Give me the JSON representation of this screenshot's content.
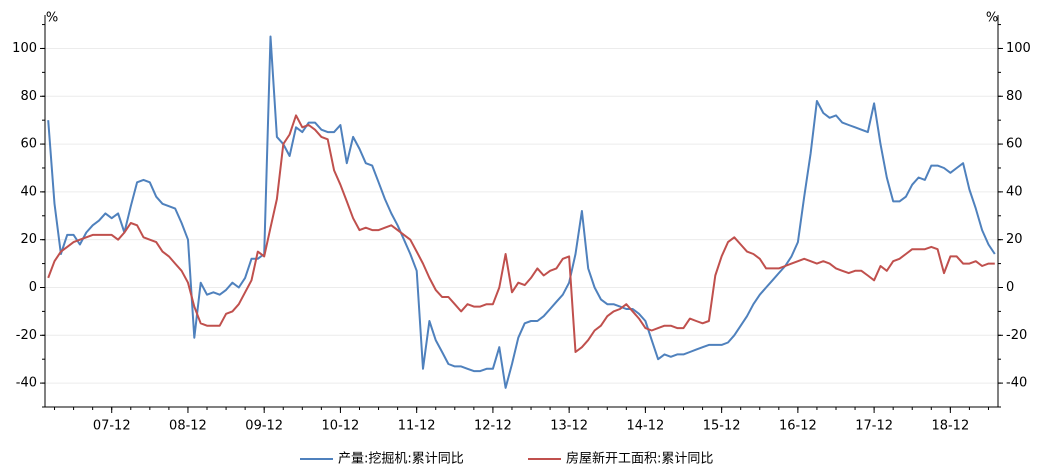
{
  "chart_data": {
    "type": "line",
    "y_unit": "%",
    "y2_unit": "%",
    "categories": [
      null,
      null,
      null,
      null,
      null,
      null,
      null,
      null,
      null,
      null,
      "07-12",
      null,
      null,
      null,
      null,
      null,
      null,
      null,
      null,
      null,
      null,
      null,
      "08-12",
      null,
      null,
      null,
      null,
      null,
      null,
      null,
      null,
      null,
      null,
      null,
      "09-12",
      null,
      null,
      null,
      null,
      null,
      null,
      null,
      null,
      null,
      null,
      null,
      "10-12",
      null,
      null,
      null,
      null,
      null,
      null,
      null,
      null,
      null,
      null,
      null,
      "11-12",
      null,
      null,
      null,
      null,
      null,
      null,
      null,
      null,
      null,
      null,
      null,
      "12-12",
      null,
      null,
      null,
      null,
      null,
      null,
      null,
      null,
      null,
      null,
      null,
      "13-12",
      null,
      null,
      null,
      null,
      null,
      null,
      null,
      null,
      null,
      null,
      null,
      "14-12",
      null,
      null,
      null,
      null,
      null,
      null,
      null,
      null,
      null,
      null,
      null,
      "15-12",
      null,
      null,
      null,
      null,
      null,
      null,
      null,
      null,
      null,
      null,
      null,
      "16-12",
      null,
      null,
      null,
      null,
      null,
      null,
      null,
      null,
      null,
      null,
      null,
      "17-12",
      null,
      null,
      null,
      null,
      null,
      null,
      null,
      null,
      null,
      null,
      null,
      "18-12",
      null,
      null,
      null,
      null,
      null,
      null,
      null
    ],
    "series": [
      {
        "name": "产量:挖掘机:累计同比",
        "color": "#4f81bd",
        "values": [
          70,
          35,
          14,
          22,
          22,
          18,
          23,
          26,
          28,
          31,
          29,
          31,
          23,
          34,
          44,
          45,
          44,
          38,
          35,
          34,
          33,
          27,
          20,
          -21,
          2,
          -3,
          -2,
          -3,
          -1,
          2,
          0,
          4,
          12,
          12,
          14,
          105,
          63,
          60,
          55,
          67,
          65,
          69,
          69,
          66,
          65,
          65,
          68,
          52,
          63,
          58,
          52,
          51,
          44,
          37,
          31,
          26,
          20,
          14,
          7,
          -34,
          -14,
          -22,
          -27,
          -32,
          -33,
          -33,
          -34,
          -35,
          -35,
          -34,
          -34,
          -25,
          -42,
          -32,
          -21,
          -15,
          -14,
          -14,
          -12,
          -9,
          -6,
          -3,
          2,
          14,
          32,
          8,
          0,
          -5,
          -7,
          -7,
          -8,
          -9,
          -9,
          -11,
          -14,
          -22,
          -30,
          -28,
          -29,
          -28,
          -28,
          -27,
          -26,
          -25,
          -24,
          -24,
          -24,
          -23,
          -20,
          -16,
          -12,
          -7,
          -3,
          0,
          3,
          6,
          9,
          13,
          19,
          38,
          56,
          78,
          73,
          71,
          72,
          69,
          68,
          67,
          66,
          65,
          77,
          60,
          46,
          36,
          36,
          38,
          43,
          46,
          45,
          51,
          51,
          50,
          48,
          50,
          52,
          41,
          33,
          24,
          18,
          14
        ]
      },
      {
        "name": "房屋新开工面积:累计同比",
        "color": "#c0504d",
        "values": [
          4,
          11,
          15,
          17,
          19,
          20,
          21,
          22,
          22,
          22,
          22,
          20,
          23,
          27,
          26,
          21,
          20,
          19,
          15,
          13,
          10,
          7,
          2,
          -8,
          -15,
          -16,
          -16,
          -16,
          -11,
          -10,
          -7,
          -2,
          3,
          15,
          13,
          25,
          37,
          60,
          64,
          72,
          67,
          68,
          66,
          63,
          62,
          49,
          43,
          36,
          29,
          24,
          25,
          24,
          24,
          25,
          26,
          24,
          22,
          20,
          15,
          10,
          4,
          -1,
          -4,
          -4,
          -7,
          -10,
          -7,
          -8,
          -8,
          -7,
          -7,
          0,
          14,
          -2,
          2,
          1,
          4,
          8,
          5,
          7,
          8,
          12,
          13,
          -27,
          -25,
          -22,
          -18,
          -16,
          -12,
          -10,
          -9,
          -7,
          -10,
          -13,
          -17,
          -18,
          -17,
          -16,
          -16,
          -17,
          -17,
          -13,
          -14,
          -15,
          -14,
          5,
          13,
          19,
          21,
          18,
          15,
          14,
          12,
          8,
          8,
          8,
          9,
          10,
          11,
          12,
          11,
          10,
          11,
          10,
          8,
          7,
          6,
          7,
          7,
          5,
          3,
          9,
          7,
          11,
          12,
          14,
          16,
          16,
          16,
          17,
          16,
          6,
          13,
          13,
          10,
          10,
          11,
          9,
          10,
          10
        ]
      }
    ],
    "ylim": [
      -50,
      114
    ],
    "yticks": [
      -40,
      -20,
      0,
      20,
      40,
      60,
      80,
      100
    ],
    "y2lim": [
      -50,
      114
    ],
    "y2ticks": [
      -40,
      -20,
      0,
      20,
      40,
      60,
      80,
      100
    ],
    "grid": true,
    "legend": "bottom"
  }
}
